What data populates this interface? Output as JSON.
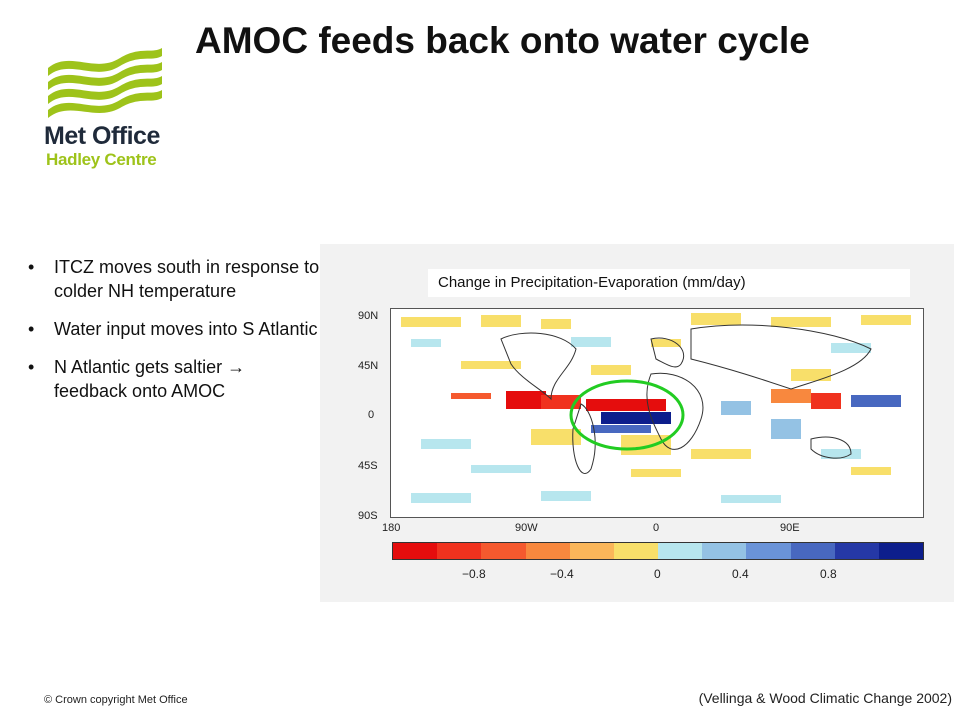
{
  "logo": {
    "name": "Met Office",
    "subname": "Hadley Centre",
    "colors": {
      "wave": "#9ec31a",
      "text": "#1f2a3a"
    },
    "icon": "wave-logo-icon"
  },
  "title": "AMOC feeds back onto water cycle",
  "bullets": [
    "ITCZ moves south in response to colder NH temperature",
    "Water input moves into S Atlantic",
    "N Atlantic gets saltier → feedback onto AMOC"
  ],
  "figure": {
    "title": "Change in Precipitation-Evaporation (mm/day)",
    "lat_labels": [
      "90N",
      "45N",
      "0",
      "45S",
      "90S"
    ],
    "lon_labels": [
      "180",
      "90W",
      "0",
      "90E"
    ],
    "colorbar": {
      "colors": [
        "#e50d0d",
        "#f0321e",
        "#f5592e",
        "#f8883e",
        "#fab65a",
        "#f8df6a",
        "#b7e6ee",
        "#94c2e4",
        "#6a93d8",
        "#4868c0",
        "#2538a6",
        "#0d1e8c"
      ],
      "labels": [
        "−0.8",
        "−0.4",
        "0",
        "0.4",
        "0.8"
      ]
    },
    "highlight_color": "#22cc22"
  },
  "footer": {
    "copyright": "© Crown  copyright   Met Office",
    "citation": "(Vellinga & Wood Climatic Change 2002)"
  }
}
